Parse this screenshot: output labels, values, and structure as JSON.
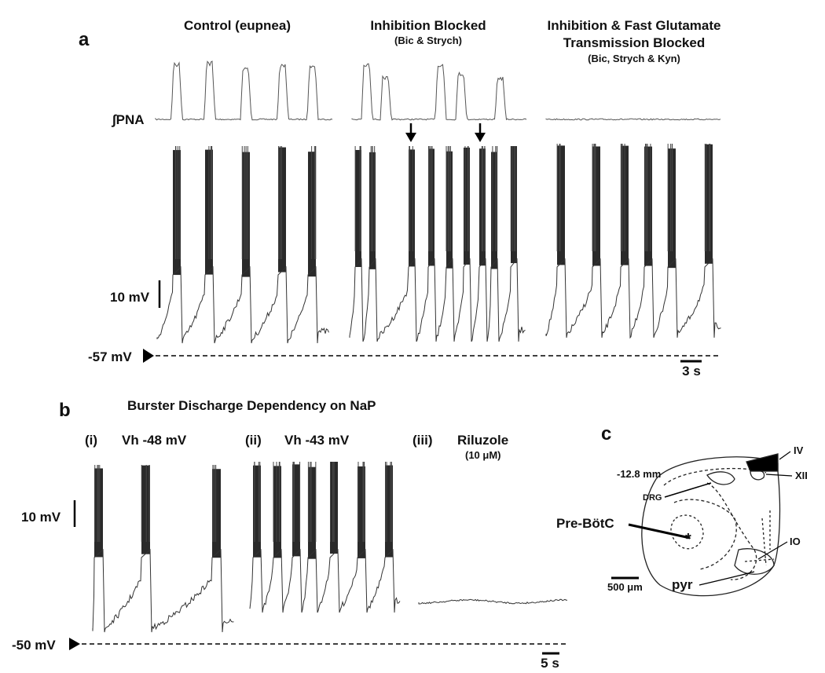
{
  "panel_a": {
    "label": "a",
    "conditions": [
      {
        "title": "Control (eupnea)"
      },
      {
        "title": "Inhibition Blocked",
        "subtitle": "(Bic & Strych)"
      },
      {
        "title_lines": [
          "Inhibition & Fast Glutamate",
          "Transmission Blocked"
        ],
        "subtitle": "(Bic, Strych & Kyn)"
      }
    ],
    "trace_label": "∫PNA",
    "scale_voltage": "10 mV",
    "holding": "-57 mV",
    "scale_time": "3 s"
  },
  "panel_b": {
    "label": "b",
    "title": "Burster Discharge Dependency on NaP",
    "conditions": [
      {
        "index": "(i)",
        "title": "Vh -48 mV"
      },
      {
        "index": "(ii)",
        "title": "Vh -43 mV"
      },
      {
        "index": "(iii)",
        "title": "Riluzole",
        "subtitle": "(10 μM)"
      }
    ],
    "scale_voltage": "10 mV",
    "holding": "-50 mV",
    "scale_time": "5 s"
  },
  "panel_c": {
    "label": "c",
    "level": "-12.8 mm",
    "structures": [
      "DRG",
      "XII",
      "IV",
      "Pre-BötC",
      "IO",
      "pyr"
    ],
    "scale": "500 μm"
  }
}
